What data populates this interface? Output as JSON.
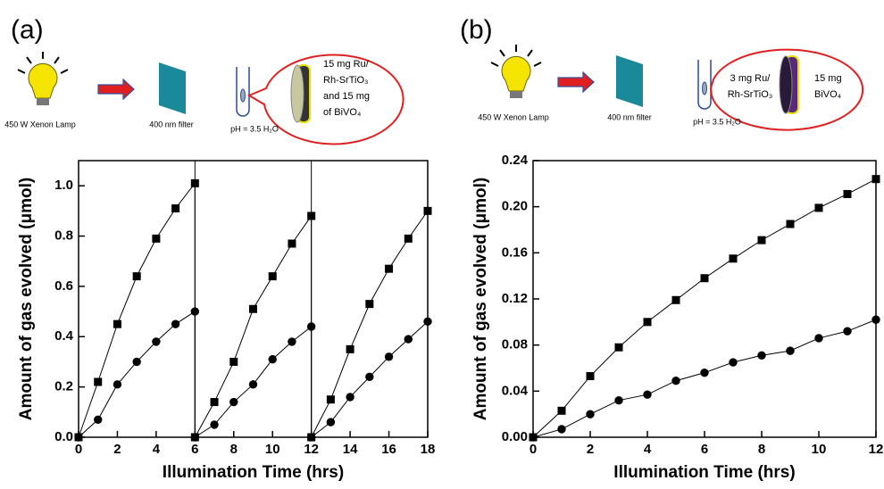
{
  "chart_data": [
    {
      "type": "line",
      "panel_label": "(a)",
      "lamp_label": "450 W Xenon Lamp",
      "filter_label": "400 nm filter",
      "solution_label": "pH = 3.5 H₂O",
      "sample_labels": [
        [
          "15 mg Ru/",
          "Rh-SrTiO₃",
          "and 15 mg",
          "of BiVO₄"
        ]
      ],
      "xlabel": "Illumination Time (hrs)",
      "ylabel": "Amount of gas evolved (μmol)",
      "xlim": [
        0,
        18
      ],
      "ylim": [
        0,
        1.1
      ],
      "xticks": [
        0,
        2,
        4,
        6,
        8,
        10,
        12,
        14,
        16,
        18
      ],
      "yticks": [
        {
          "value": 0,
          "label": "0.0"
        },
        0.2,
        0.4,
        0.6,
        0.8,
        {
          "value": 1,
          "label": "1.0"
        }
      ],
      "vlines": [
        6,
        12
      ],
      "x": [
        0,
        1,
        2,
        3,
        4,
        5,
        6,
        6,
        7,
        8,
        9,
        10,
        11,
        12,
        12,
        13,
        14,
        15,
        16,
        17,
        18
      ],
      "series": [
        {
          "marker": "square",
          "color": "#000000",
          "values": [
            0,
            0.22,
            0.45,
            0.64,
            0.79,
            0.91,
            1.01,
            0,
            0.14,
            0.3,
            0.51,
            0.64,
            0.77,
            0.88,
            0,
            0.15,
            0.35,
            0.53,
            0.67,
            0.79,
            0.9
          ]
        },
        {
          "marker": "circle",
          "color": "#000000",
          "values": [
            0,
            0.07,
            0.21,
            0.3,
            0.38,
            0.45,
            0.5,
            0,
            0.05,
            0.14,
            0.21,
            0.31,
            0.38,
            0.44,
            0,
            0.06,
            0.16,
            0.24,
            0.32,
            0.39,
            0.46
          ]
        }
      ]
    },
    {
      "type": "line",
      "panel_label": "(b)",
      "lamp_label": "450 W Xenon Lamp",
      "filter_label": "400 nm filter",
      "solution_label": "pH = 3.5 H₂O",
      "sample_labels": [
        [
          "3 mg Ru/",
          "Rh-SrTiO₃"
        ],
        [
          "15 mg",
          "BiVO₄"
        ]
      ],
      "xlabel": "Illumination Time (hrs)",
      "ylabel": "Amount of gas evolved (μmol)",
      "xlim": [
        0,
        12
      ],
      "ylim": [
        0,
        0.24
      ],
      "xticks": [
        0,
        2,
        4,
        6,
        8,
        10,
        12
      ],
      "yticks": [
        {
          "value": 0,
          "label": "0.00"
        },
        {
          "value": 0.04,
          "label": "0.04"
        },
        {
          "value": 0.08,
          "label": "0.08"
        },
        {
          "value": 0.12,
          "label": "0.12"
        },
        {
          "value": 0.16,
          "label": "0.16"
        },
        {
          "value": 0.2,
          "label": "0.20"
        },
        {
          "value": 0.24,
          "label": "0.24"
        }
      ],
      "x": [
        0,
        1,
        2,
        3,
        4,
        5,
        6,
        7,
        8,
        9,
        10,
        11,
        12
      ],
      "series": [
        {
          "marker": "square",
          "color": "#000000",
          "values": [
            0,
            0.023,
            0.053,
            0.078,
            0.1,
            0.119,
            0.138,
            0.155,
            0.171,
            0.185,
            0.199,
            0.211,
            0.224
          ]
        },
        {
          "marker": "circle",
          "color": "#000000",
          "values": [
            0,
            0.007,
            0.02,
            0.032,
            0.037,
            0.049,
            0.056,
            0.065,
            0.071,
            0.075,
            0.086,
            0.092,
            0.102
          ]
        }
      ]
    }
  ]
}
